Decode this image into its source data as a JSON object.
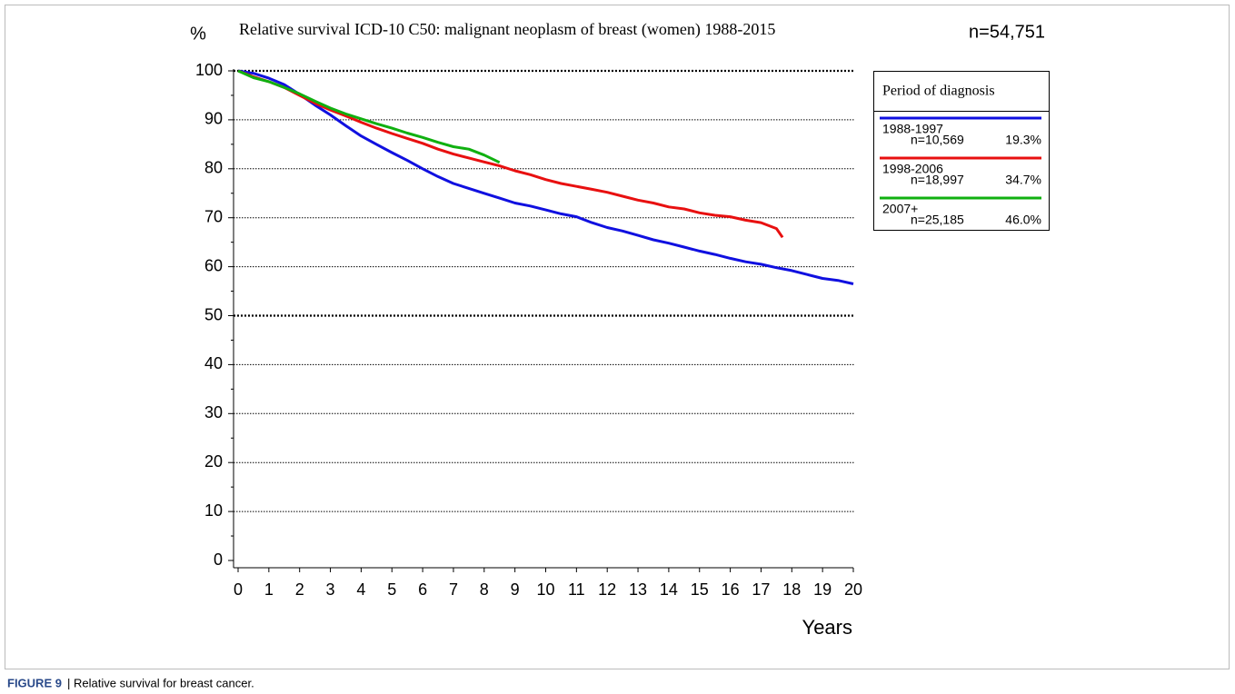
{
  "chart_data": {
    "type": "line",
    "y_unit": "%",
    "title": "Relative survival  ICD-10 C50: malignant neoplasm of breast (women) 1988-2015",
    "total_n": "n=54,751",
    "x_label": "Years",
    "legend_title": "Period of diagnosis",
    "caption_label": "FIGURE 9",
    "caption_text": "| Relative survival for breast cancer.",
    "xlim": [
      0,
      20
    ],
    "ylim": [
      0,
      100
    ],
    "xticks": [
      0,
      1,
      2,
      3,
      4,
      5,
      6,
      7,
      8,
      9,
      10,
      11,
      12,
      13,
      14,
      15,
      16,
      17,
      18,
      19,
      20
    ],
    "yticks": [
      0,
      10,
      20,
      30,
      40,
      50,
      60,
      70,
      80,
      90,
      100
    ],
    "grid": true,
    "major_grid": [
      50,
      100
    ],
    "series": [
      {
        "name": "1988-1997",
        "n_label": "n=10,569",
        "share_label": "19.3%",
        "color": "#1010e0",
        "x": [
          0,
          0.5,
          1,
          1.5,
          2,
          2.5,
          3,
          3.5,
          4,
          4.5,
          5,
          5.5,
          6,
          6.5,
          7,
          7.5,
          8,
          8.5,
          9,
          9.5,
          10,
          10.5,
          11,
          11.5,
          12,
          12.5,
          13,
          13.5,
          14,
          14.5,
          15,
          15.5,
          16,
          16.5,
          17,
          17.5,
          18,
          18.5,
          19,
          19.5,
          20
        ],
        "values": [
          100,
          99.5,
          98.5,
          97.2,
          95.2,
          93,
          91,
          88.8,
          86.7,
          85,
          83.3,
          81.7,
          80,
          78.4,
          77,
          76,
          75,
          74,
          73,
          72.4,
          71.6,
          70.8,
          70.2,
          69,
          68,
          67.3,
          66.4,
          65.5,
          64.8,
          64,
          63.2,
          62.5,
          61.7,
          61,
          60.5,
          59.8,
          59.2,
          58.4,
          57.6,
          57.2,
          56.5
        ]
      },
      {
        "name": "1998-2006",
        "n_label": "n=18,997",
        "share_label": "34.7%",
        "color": "#e81010",
        "x": [
          0,
          0.5,
          1,
          1.5,
          2,
          2.5,
          3,
          3.5,
          4,
          4.5,
          5,
          5.5,
          6,
          6.5,
          7,
          7.5,
          8,
          8.5,
          9,
          9.5,
          10,
          10.5,
          11,
          11.5,
          12,
          12.5,
          13,
          13.5,
          14,
          14.5,
          15,
          15.5,
          16,
          16.5,
          17,
          17.5,
          17.7
        ],
        "values": [
          100,
          98.8,
          97.8,
          96.6,
          95,
          93.4,
          92,
          90.8,
          89.5,
          88.3,
          87.2,
          86.2,
          85.2,
          84,
          83,
          82.2,
          81.4,
          80.6,
          79.6,
          78.8,
          77.8,
          77,
          76.4,
          75.8,
          75.2,
          74.4,
          73.6,
          73,
          72.2,
          71.8,
          71,
          70.5,
          70.2,
          69.5,
          69,
          67.8,
          66
        ]
      },
      {
        "name": "2007+",
        "n_label": "n=25,185",
        "share_label": "46.0%",
        "color": "#10b010",
        "x": [
          0,
          0.5,
          1,
          1.5,
          2,
          2.5,
          3,
          3.5,
          4,
          4.5,
          5,
          5.5,
          6,
          6.5,
          7,
          7.5,
          8,
          8.5
        ],
        "values": [
          100,
          98.6,
          97.8,
          96.6,
          95.3,
          93.8,
          92.4,
          91.2,
          90.2,
          89.2,
          88.3,
          87.3,
          86.4,
          85.4,
          84.5,
          84,
          82.8,
          81.3
        ]
      }
    ]
  }
}
